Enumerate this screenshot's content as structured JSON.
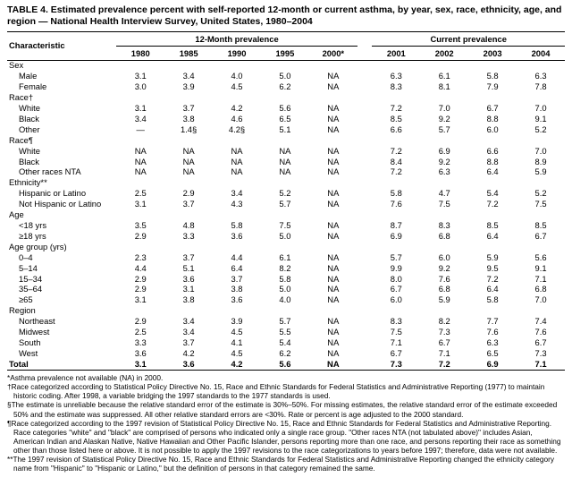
{
  "title": "TABLE 4. Estimated prevalence percent with self-reported 12-month or current asthma, by year, sex, race, ethnicity, age, and region — National Health Interview Survey, United States, 1980–2004",
  "table": {
    "char_header": "Characteristic",
    "col_groups": [
      {
        "label": "12-Month prevalence",
        "cols": [
          "1980",
          "1985",
          "1990",
          "1995",
          "2000*"
        ]
      },
      {
        "label": "Current prevalence",
        "cols": [
          "2001",
          "2002",
          "2003",
          "2004"
        ]
      }
    ],
    "rows": [
      {
        "type": "group",
        "label": "Sex"
      },
      {
        "type": "data",
        "label": "Male",
        "values": [
          "3.1",
          "3.4",
          "4.0",
          "5.0",
          "NA",
          "6.3",
          "6.1",
          "5.8",
          "6.3"
        ]
      },
      {
        "type": "data",
        "label": "Female",
        "values": [
          "3.0",
          "3.9",
          "4.5",
          "6.2",
          "NA",
          "8.3",
          "8.1",
          "7.9",
          "7.8"
        ]
      },
      {
        "type": "group",
        "label": "Race†"
      },
      {
        "type": "data",
        "label": "White",
        "values": [
          "3.1",
          "3.7",
          "4.2",
          "5.6",
          "NA",
          "7.2",
          "7.0",
          "6.7",
          "7.0"
        ]
      },
      {
        "type": "data",
        "label": "Black",
        "values": [
          "3.4",
          "3.8",
          "4.6",
          "6.5",
          "NA",
          "8.5",
          "9.2",
          "8.8",
          "9.1"
        ]
      },
      {
        "type": "data",
        "label": "Other",
        "values": [
          "—",
          "1.4§",
          "4.2§",
          "5.1",
          "NA",
          "6.6",
          "5.7",
          "6.0",
          "5.2"
        ]
      },
      {
        "type": "group",
        "label": "Race¶"
      },
      {
        "type": "data",
        "label": "White",
        "values": [
          "NA",
          "NA",
          "NA",
          "NA",
          "NA",
          "7.2",
          "6.9",
          "6.6",
          "7.0"
        ]
      },
      {
        "type": "data",
        "label": "Black",
        "values": [
          "NA",
          "NA",
          "NA",
          "NA",
          "NA",
          "8.4",
          "9.2",
          "8.8",
          "8.9"
        ]
      },
      {
        "type": "data",
        "label": "Other races NTA",
        "values": [
          "NA",
          "NA",
          "NA",
          "NA",
          "NA",
          "7.2",
          "6.3",
          "6.4",
          "5.9"
        ]
      },
      {
        "type": "group",
        "label": "Ethnicity**"
      },
      {
        "type": "data",
        "label": "Hispanic or Latino",
        "values": [
          "2.5",
          "2.9",
          "3.4",
          "5.2",
          "NA",
          "5.8",
          "4.7",
          "5.4",
          "5.2"
        ]
      },
      {
        "type": "data",
        "label": "Not Hispanic or Latino",
        "values": [
          "3.1",
          "3.7",
          "4.3",
          "5.7",
          "NA",
          "7.6",
          "7.5",
          "7.2",
          "7.5"
        ]
      },
      {
        "type": "group",
        "label": "Age"
      },
      {
        "type": "data",
        "label": "<18 yrs",
        "values": [
          "3.5",
          "4.8",
          "5.8",
          "7.5",
          "NA",
          "8.7",
          "8.3",
          "8.5",
          "8.5"
        ]
      },
      {
        "type": "data",
        "label": "≥18 yrs",
        "values": [
          "2.9",
          "3.3",
          "3.6",
          "5.0",
          "NA",
          "6.9",
          "6.8",
          "6.4",
          "6.7"
        ]
      },
      {
        "type": "group",
        "label": "Age group (yrs)"
      },
      {
        "type": "data",
        "label": "0–4",
        "values": [
          "2.3",
          "3.7",
          "4.4",
          "6.1",
          "NA",
          "5.7",
          "6.0",
          "5.9",
          "5.6"
        ]
      },
      {
        "type": "data",
        "label": "5–14",
        "values": [
          "4.4",
          "5.1",
          "6.4",
          "8.2",
          "NA",
          "9.9",
          "9.2",
          "9.5",
          "9.1"
        ]
      },
      {
        "type": "data",
        "label": "15–34",
        "values": [
          "2.9",
          "3.6",
          "3.7",
          "5.8",
          "NA",
          "8.0",
          "7.6",
          "7.2",
          "7.1"
        ]
      },
      {
        "type": "data",
        "label": "35–64",
        "values": [
          "2.9",
          "3.1",
          "3.8",
          "5.0",
          "NA",
          "6.7",
          "6.8",
          "6.4",
          "6.8"
        ]
      },
      {
        "type": "data",
        "label": "≥65",
        "values": [
          "3.1",
          "3.8",
          "3.6",
          "4.0",
          "NA",
          "6.0",
          "5.9",
          "5.8",
          "7.0"
        ]
      },
      {
        "type": "group",
        "label": "Region"
      },
      {
        "type": "data",
        "label": "Northeast",
        "values": [
          "2.9",
          "3.4",
          "3.9",
          "5.7",
          "NA",
          "8.3",
          "8.2",
          "7.7",
          "7.4"
        ]
      },
      {
        "type": "data",
        "label": "Midwest",
        "values": [
          "2.5",
          "3.4",
          "4.5",
          "5.5",
          "NA",
          "7.5",
          "7.3",
          "7.6",
          "7.6"
        ]
      },
      {
        "type": "data",
        "label": "South",
        "values": [
          "3.3",
          "3.7",
          "4.1",
          "5.4",
          "NA",
          "7.1",
          "6.7",
          "6.3",
          "6.7"
        ]
      },
      {
        "type": "data",
        "label": "West",
        "values": [
          "3.6",
          "4.2",
          "4.5",
          "6.2",
          "NA",
          "6.7",
          "7.1",
          "6.5",
          "7.3"
        ]
      },
      {
        "type": "data",
        "label": "Total",
        "total": true,
        "values": [
          "3.1",
          "3.6",
          "4.2",
          "5.6",
          "NA",
          "7.3",
          "7.2",
          "6.9",
          "7.1"
        ]
      }
    ]
  },
  "footnotes": [
    "*Asthma prevalence not available (NA) in 2000.",
    "†Race categorized according to Statistical Policy Directive No. 15, Race and Ethnic Standards for Federal Statistics and Administrative Reporting (1977) to maintain historic coding. After 1998, a variable bridging the 1997 standards to the 1977 standards is used.",
    "§The estimate is unreliable because the relative standard error of the estimate is 30%–50%. For missing estimates, the relative standard error of the estimate exceeded 50% and the estimate was suppressed. All other relative standard errors are <30%. Rate or percent is age adjusted to the 2000 standard.",
    "¶Race categorized according to the 1997 revision of Statistical Policy Directive No. 15, Race and Ethnic Standards for Federal Statistics and Administrative Reporting. Race categories \"white\" and \"black\" are comprised of persons who indicated only a single race group. \"Other races NTA (not tabulated above)\" includes Asian, American Indian and Alaskan Native, Native Hawaiian and Other Pacific Islander, persons reporting more than one race, and persons reporting their race as something other than those listed here or above. It is not possible to apply the 1997 revisions to the race categorizations to years before 1997; therefore, data were not available.",
    "**The 1997 revision of Statistical Policy Directive No. 15, Race and Ethnic Standards for Federal Statistics and Administrative Reporting changed the ethnicity category name from \"Hispanic\" to \"Hispanic or Latino,\" but the definition of persons in that category remained the same."
  ]
}
